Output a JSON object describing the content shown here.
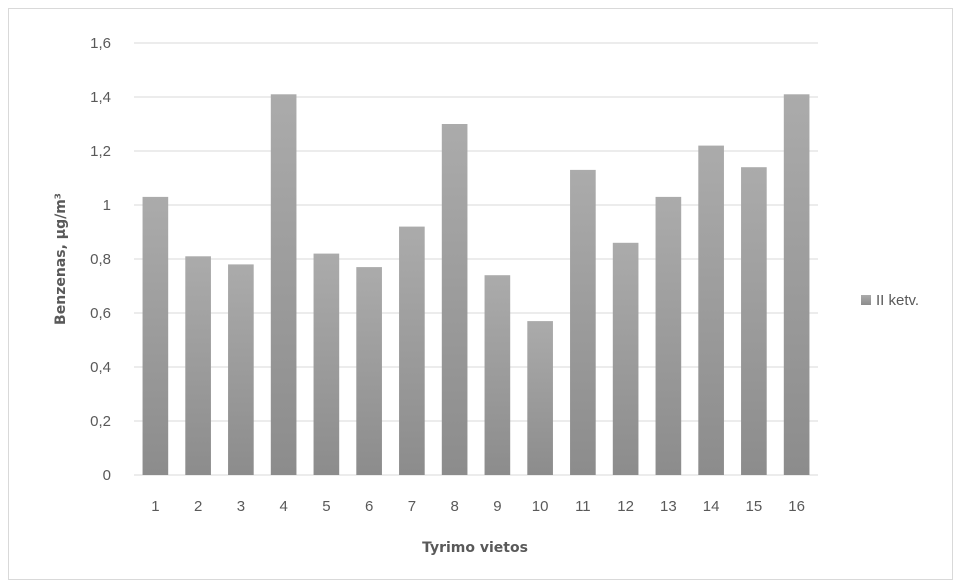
{
  "chart_data": {
    "type": "bar",
    "title": "",
    "xlabel": "Tyrimo vietos",
    "ylabel": "Benzenas, µg/m³",
    "categories": [
      "1",
      "2",
      "3",
      "4",
      "5",
      "6",
      "7",
      "8",
      "9",
      "10",
      "11",
      "12",
      "13",
      "14",
      "15",
      "16"
    ],
    "series": [
      {
        "name": "II ketv.",
        "values": [
          1.03,
          0.81,
          0.78,
          1.41,
          0.82,
          0.77,
          0.92,
          1.3,
          0.74,
          0.57,
          1.13,
          0.86,
          1.03,
          1.22,
          1.14,
          1.41
        ]
      }
    ],
    "ylim": [
      0,
      1.6
    ],
    "yticks": [
      "0",
      "0,2",
      "0,4",
      "0,6",
      "0,8",
      "1",
      "1,2",
      "1,4",
      "1,6"
    ],
    "grid": true,
    "legend_position": "right",
    "colors": {
      "bar_top": "#ababab",
      "bar_bottom": "#8c8c8c",
      "grid": "#d9d9d9",
      "text": "#595959"
    }
  }
}
